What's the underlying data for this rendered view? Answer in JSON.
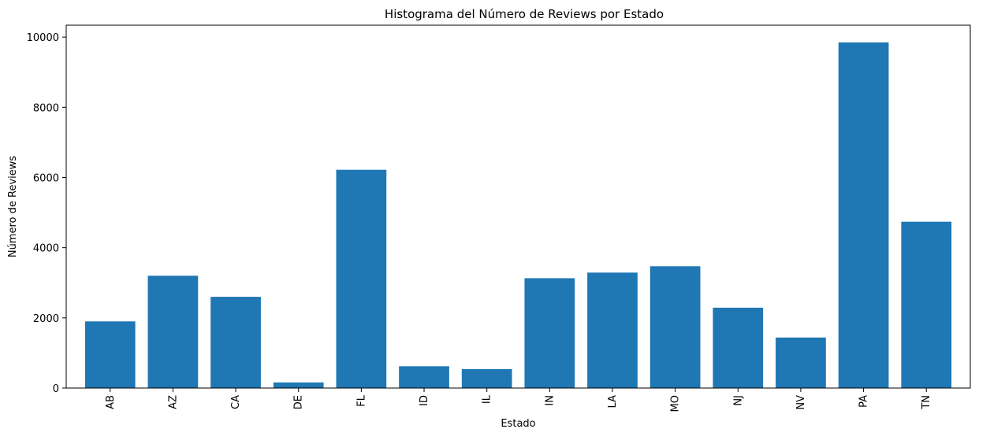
{
  "chart_data": {
    "type": "bar",
    "title": "Histograma del Número de Reviews por Estado",
    "xlabel": "Estado",
    "ylabel": "Número de Reviews",
    "categories": [
      "AB",
      "AZ",
      "CA",
      "DE",
      "FL",
      "ID",
      "IL",
      "IN",
      "LA",
      "MO",
      "NJ",
      "NV",
      "PA",
      "TN"
    ],
    "values": [
      1900,
      3200,
      2600,
      160,
      6220,
      620,
      540,
      3130,
      3290,
      3470,
      2290,
      1440,
      9850,
      4740
    ],
    "ylim": [
      0,
      10340
    ],
    "yticks": [
      0,
      2000,
      4000,
      6000,
      8000,
      10000
    ],
    "grid": false,
    "bar_color": "#1f77b4"
  }
}
